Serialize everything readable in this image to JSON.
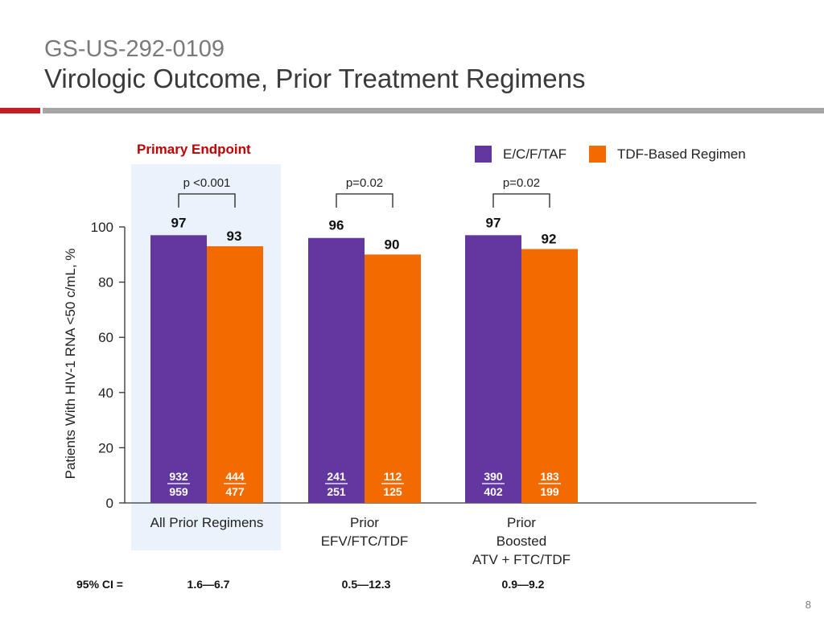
{
  "header": {
    "study": "GS-US-292-0109",
    "title": "Virologic Outcome, Prior Treatment Regimens"
  },
  "primary_endpoint_label": "Primary Endpoint",
  "legend": [
    {
      "name": "E/C/F/TAF",
      "color": "#6238a0"
    },
    {
      "name": "TDF-Based Regimen",
      "color": "#f26b00"
    }
  ],
  "ci": {
    "label": "95% CI =",
    "values": [
      "1.6—6.7",
      "0.5—12.3",
      "0.9—9.2"
    ]
  },
  "page_number": "8",
  "colors": {
    "highlight_panel": "#eaf2fb",
    "axis": "#333333",
    "fraction_text": "#ffffff",
    "primary_red": "#c00000"
  },
  "chart_data": {
    "type": "bar",
    "ylabel": "Patients With HIV-1 RNA <50 c/mL, %",
    "ylim": [
      0,
      100
    ],
    "yticks": [
      0,
      20,
      40,
      60,
      80,
      100
    ],
    "categories": [
      {
        "lines": [
          "All Prior Regimens"
        ]
      },
      {
        "lines": [
          "Prior",
          "EFV/FTC/TDF"
        ]
      },
      {
        "lines": [
          "Prior",
          "Boosted",
          "ATV + FTC/TDF"
        ]
      }
    ],
    "series": [
      {
        "name": "E/C/F/TAF",
        "color": "#6238a0",
        "values": [
          97,
          96,
          97
        ],
        "labels": [
          "97",
          "96",
          "97"
        ],
        "n": [
          "932",
          "241",
          "390"
        ],
        "total": [
          "959",
          "251",
          "402"
        ]
      },
      {
        "name": "TDF-Based Regimen",
        "color": "#f26b00",
        "values": [
          93,
          90,
          92
        ],
        "labels": [
          "93",
          "90",
          "92"
        ],
        "n": [
          "444",
          "112",
          "183"
        ],
        "total": [
          "477",
          "125",
          "199"
        ]
      }
    ],
    "p_values": [
      "p <0.001",
      "p=0.02",
      "p=0.02"
    ],
    "highlighted_category": 0
  }
}
